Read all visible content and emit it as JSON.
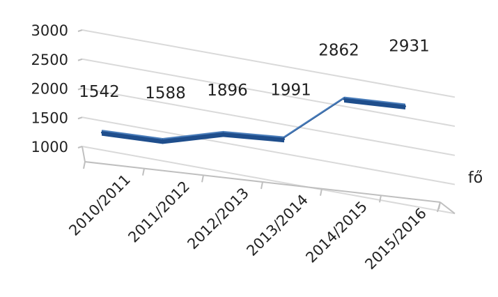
{
  "chart_data": {
    "type": "line",
    "categories": [
      "2010/2011",
      "2011/2012",
      "2012/2013",
      "2013/2014",
      "2014/2015",
      "2015/2016"
    ],
    "values": [
      1542,
      1588,
      1896,
      1991,
      2862,
      2931
    ],
    "data_labels": [
      "1542",
      "1588",
      "1896",
      "1991",
      "2862",
      "2931"
    ],
    "y_ticks": [
      "1000",
      "1500",
      "2000",
      "2500",
      "3000"
    ],
    "ylim": [
      1000,
      3000
    ],
    "depth_axis_label": "fő",
    "grid": true,
    "legend": "none",
    "perspective": "3d",
    "colors": {
      "ribbon_top": "#4a7dba",
      "ribbon_front": "#1f4e8c",
      "gridline": "#d9d9d9",
      "axis": "#bfbfbf",
      "text": "#222222"
    }
  }
}
